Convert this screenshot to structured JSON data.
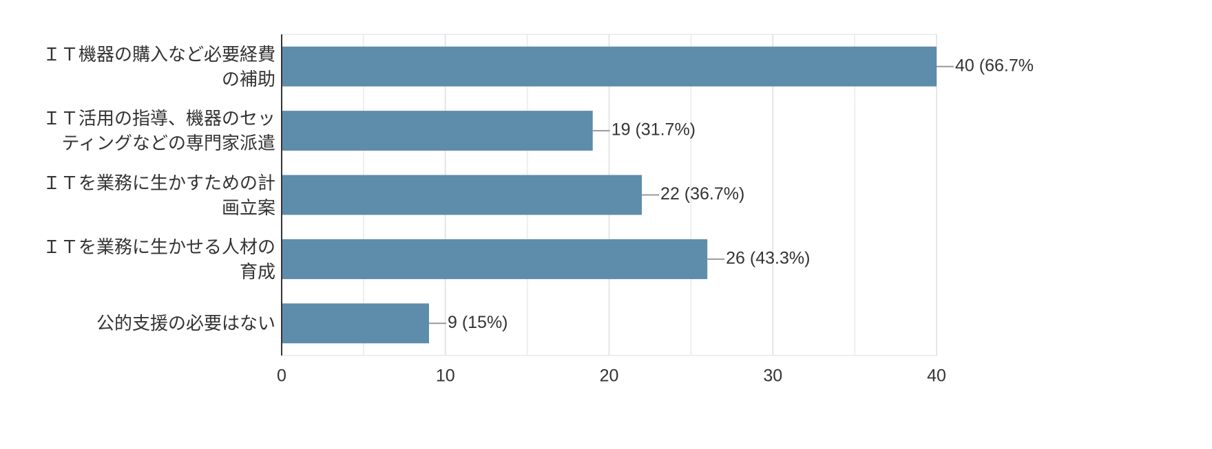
{
  "chart_data": {
    "type": "bar",
    "orientation": "horizontal",
    "categories": [
      "ＩＴ機器の購入など必要経費の補助",
      "ＩＴ活用の指導、機器のセッティングなどの専門家派遣",
      "ＩＴを業務に生かすための計画立案",
      "ＩＴを業務に生かせる人材の育成",
      "公的支援の必要はない"
    ],
    "values": [
      40,
      19,
      22,
      26,
      9
    ],
    "value_labels": [
      "40 (66.7%",
      "19 (31.7%)",
      "22 (36.7%)",
      "26 (43.3%)",
      "9 (15%)"
    ],
    "color": "#5e8cab",
    "xlim": [
      0,
      40
    ],
    "xticks": [
      0,
      10,
      20,
      30,
      40
    ],
    "minor_xticks": [
      5,
      15,
      25,
      35
    ],
    "grid": true
  }
}
